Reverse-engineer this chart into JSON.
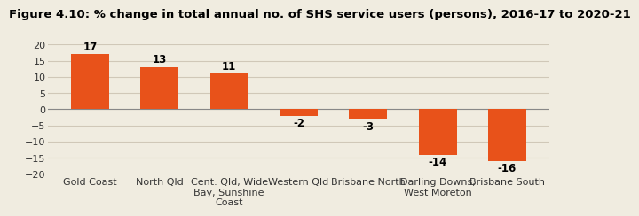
{
  "title": "Figure 4.10: % change in total annual no. of SHS service users (persons), 2016-17 to 2020-21",
  "categories": [
    "Gold Coast",
    "North Qld",
    "Cent. Qld, Wide\nBay, Sunshine\nCoast",
    "Western Qld",
    "Brisbane North",
    "Darling Downs,\nWest Moreton",
    "Brisbane South"
  ],
  "values": [
    17,
    13,
    11,
    -2,
    -3,
    -14,
    -16
  ],
  "bar_color": "#e8521a",
  "background_color": "#f0ece0",
  "ylim": [
    -20,
    20
  ],
  "yticks": [
    -20,
    -15,
    -10,
    -5,
    0,
    5,
    10,
    15,
    20
  ],
  "title_fontsize": 9.5,
  "tick_fontsize": 8,
  "value_fontsize": 8.5
}
